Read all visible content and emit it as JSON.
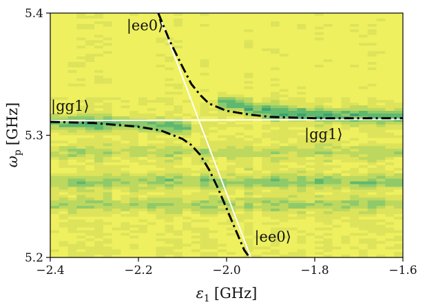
{
  "chart_data": {
    "type": "heatmap",
    "xlabel_math": "ε",
    "xlabel_sub": "1",
    "xlabel_unit": "[GHz]",
    "ylabel_math": "ω",
    "ylabel_sub": "p",
    "ylabel_unit": "[GHz]",
    "xlim": [
      -2.4,
      -1.6
    ],
    "ylim": [
      5.2,
      5.4
    ],
    "xticks": [
      -2.4,
      -2.2,
      -2.0,
      -1.8,
      -1.6
    ],
    "xtick_labels": [
      "−2.4",
      "−2.2",
      "−2.0",
      "−1.8",
      "−1.6"
    ],
    "yticks": [
      5.2,
      5.3,
      5.4
    ],
    "ytick_labels": [
      "5.2",
      "5.3",
      "5.4"
    ],
    "colormap": [
      "#1f8f6e",
      "#3aa372",
      "#5fb86f",
      "#8fca6a",
      "#bcd85f",
      "#dde35a",
      "#eef05f"
    ],
    "heatmap_features": [
      {
        "description": "upper resonance branch",
        "center_ghz_at_x_max": 5.314,
        "strength": 0.55
      },
      {
        "description": "lower resonance branch",
        "center_ghz_at_x_min": 5.311,
        "strength": 0.5
      },
      {
        "description": "broad band",
        "center_ghz": 5.262,
        "strength": 0.35
      },
      {
        "description": "band",
        "center_ghz": 5.243,
        "strength": 0.3
      },
      {
        "description": "band",
        "center_ghz": 5.286,
        "strength": 0.25
      }
    ],
    "series": [
      {
        "style": "white solid",
        "color": "#ffffff",
        "x": [
          -2.4,
          -1.6
        ],
        "y": [
          5.312,
          5.313
        ]
      },
      {
        "style": "white solid",
        "color": "#ffffff",
        "x": [
          -2.155,
          -1.945
        ],
        "y": [
          5.4,
          5.2
        ]
      },
      {
        "style": "black dash-dot",
        "color": "#000000",
        "x": [
          -2.155,
          -2.13,
          -2.1,
          -2.08,
          -2.06,
          -2.04,
          -2.0,
          -1.95,
          -1.9,
          -1.8,
          -1.7,
          -1.6
        ],
        "y": [
          5.4,
          5.378,
          5.356,
          5.342,
          5.333,
          5.326,
          5.32,
          5.317,
          5.315,
          5.314,
          5.314,
          5.314
        ]
      },
      {
        "style": "black dash-dot",
        "color": "#000000",
        "x": [
          -2.4,
          -2.3,
          -2.2,
          -2.15,
          -2.1,
          -2.08,
          -2.06,
          -2.04,
          -2.02,
          -2.0,
          -1.98,
          -1.96,
          -1.948
        ],
        "y": [
          5.311,
          5.31,
          5.307,
          5.304,
          5.297,
          5.292,
          5.284,
          5.272,
          5.257,
          5.24,
          5.223,
          5.206,
          5.2
        ]
      }
    ],
    "annotations": [
      {
        "text": "|ee0⟩",
        "x": -2.185,
        "y": 5.386
      },
      {
        "text": "|gg1⟩",
        "x": -2.355,
        "y": 5.32
      },
      {
        "text": "|gg1⟩",
        "x": -1.78,
        "y": 5.297
      },
      {
        "text": "|ee0⟩",
        "x": -1.895,
        "y": 5.213
      }
    ]
  }
}
